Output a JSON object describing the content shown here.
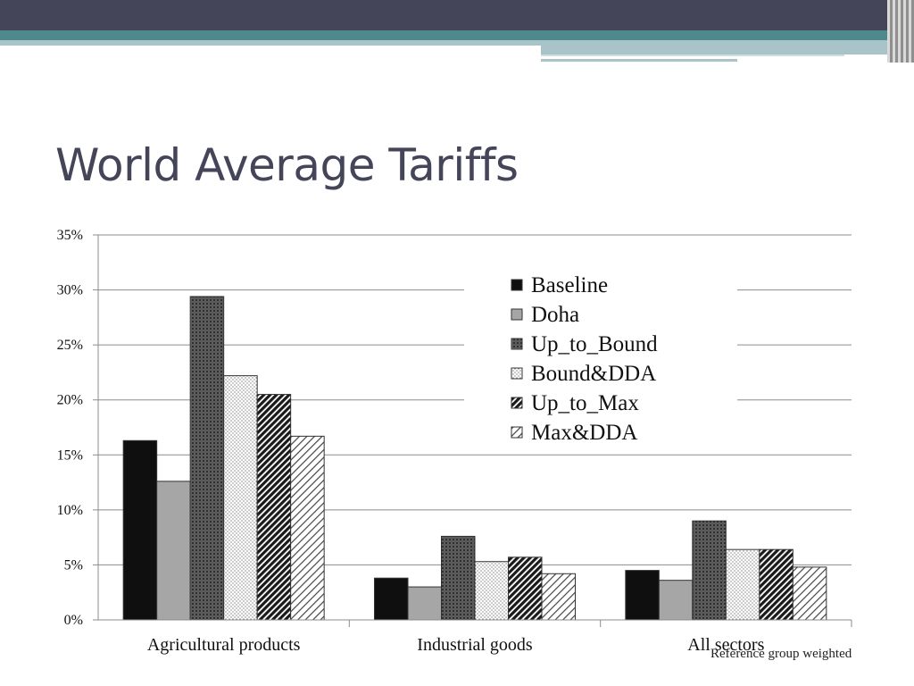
{
  "slide": {
    "title": "World Average Tariffs",
    "note": "Reference group weighted"
  },
  "colors": {
    "header_dark": "#454559",
    "header_teal": "#4e8a8b",
    "header_light": "#a9c4c8"
  },
  "chart_data": {
    "type": "bar",
    "title": "",
    "xlabel": "",
    "ylabel": "",
    "categories": [
      "Agricultural products",
      "Industrial goods",
      "All sectors"
    ],
    "series": [
      {
        "name": "Baseline",
        "values": [
          0.163,
          0.038,
          0.045
        ],
        "pattern": "solid-black"
      },
      {
        "name": "Doha",
        "values": [
          0.126,
          0.03,
          0.036
        ],
        "pattern": "solid-gray"
      },
      {
        "name": "Up_to_Bound",
        "values": [
          0.294,
          0.076,
          0.09
        ],
        "pattern": "crosshatch-dense"
      },
      {
        "name": "Bound&DDA",
        "values": [
          0.222,
          0.053,
          0.064
        ],
        "pattern": "dots"
      },
      {
        "name": "Up_to_Max",
        "values": [
          0.205,
          0.057,
          0.064
        ],
        "pattern": "diag-dark"
      },
      {
        "name": "Max&DDA",
        "values": [
          0.167,
          0.042,
          0.048
        ],
        "pattern": "diag-light"
      }
    ],
    "ylim": [
      0,
      0.35
    ],
    "yticks": [
      0,
      0.05,
      0.1,
      0.15,
      0.2,
      0.25,
      0.3,
      0.35
    ],
    "ytick_labels": [
      "0%",
      "5%",
      "10%",
      "15%",
      "20%",
      "25%",
      "30%",
      "35%"
    ],
    "grid": true,
    "legend_position": "top-right"
  }
}
